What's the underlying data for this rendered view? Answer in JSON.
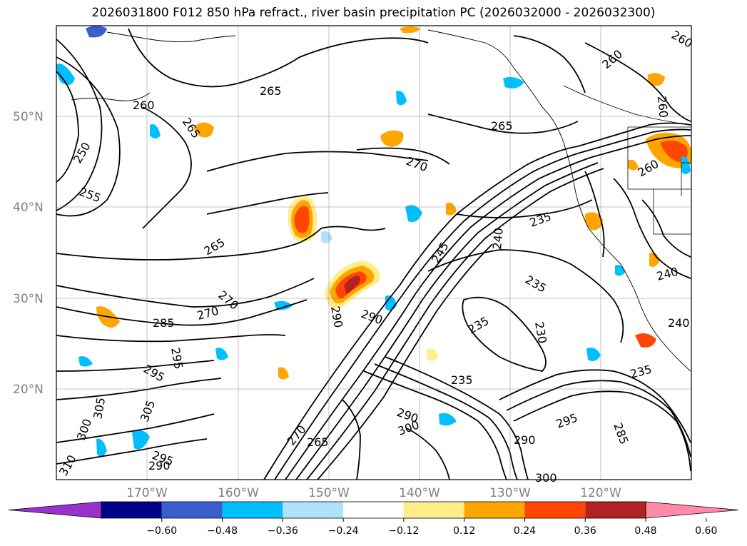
{
  "title": "2026031800 F012 850 hPa refract., river basin precipitation PC (2026032000 - 2026032300)",
  "latitude_labels": [
    "50°N",
    "40°N",
    "30°N",
    "20°N"
  ],
  "longitude_labels": [
    "170°W",
    "160°W",
    "150°W",
    "140°W",
    "130°W",
    "120°W"
  ],
  "contour_labels": [
    {
      "text": "265"
    },
    {
      "text": "260"
    },
    {
      "text": "265"
    },
    {
      "text": "250"
    },
    {
      "text": "255"
    },
    {
      "text": "260"
    },
    {
      "text": "265"
    },
    {
      "text": "270"
    },
    {
      "text": "265"
    },
    {
      "text": "270"
    },
    {
      "text": "270"
    },
    {
      "text": "285"
    },
    {
      "text": "295"
    },
    {
      "text": "295"
    },
    {
      "text": "290"
    },
    {
      "text": "290"
    },
    {
      "text": "245"
    },
    {
      "text": "240"
    },
    {
      "text": "235"
    },
    {
      "text": "235"
    },
    {
      "text": "235"
    },
    {
      "text": "230"
    },
    {
      "text": "235"
    },
    {
      "text": "240"
    },
    {
      "text": "240"
    },
    {
      "text": "235"
    },
    {
      "text": "260"
    },
    {
      "text": "260"
    },
    {
      "text": "305"
    },
    {
      "text": "305"
    },
    {
      "text": "300"
    },
    {
      "text": "310"
    },
    {
      "text": "295"
    },
    {
      "text": "290"
    },
    {
      "text": "270"
    },
    {
      "text": "265"
    },
    {
      "text": "290"
    },
    {
      "text": "300"
    },
    {
      "text": "290"
    },
    {
      "text": "295"
    },
    {
      "text": "285"
    },
    {
      "text": "300"
    },
    {
      "text": "260"
    }
  ],
  "colorbar": {
    "ticks": [
      "−0.60",
      "−0.48",
      "−0.36",
      "−0.24",
      "−0.12",
      "0.12",
      "0.24",
      "0.36",
      "0.48",
      "0.60"
    ],
    "colors": [
      "#9932CC",
      "#00008B",
      "#3A5FCD",
      "#00BFFF",
      "#B0E2FF",
      "#FFFFFF",
      "#FFEC8B",
      "#FFA500",
      "#FF4500",
      "#B22222",
      "#FF89A9"
    ]
  }
}
